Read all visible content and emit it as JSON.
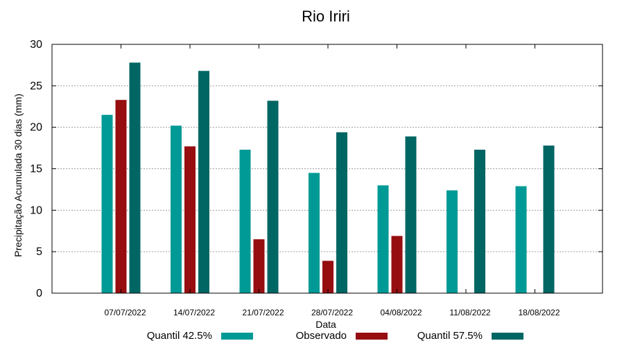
{
  "chart_data": {
    "type": "bar",
    "title": "Rio Iriri",
    "xlabel": "Data",
    "ylabel": "Precipitação Acumulada 30 dias (mm)",
    "ylim": [
      0,
      30
    ],
    "yticks": [
      0,
      5,
      10,
      15,
      20,
      25,
      30
    ],
    "grid": true,
    "legend_position": "bottom",
    "categories": [
      "07/07/2022",
      "14/07/2022",
      "21/07/2022",
      "28/07/2022",
      "04/08/2022",
      "11/08/2022",
      "18/08/2022"
    ],
    "series": [
      {
        "name": "Quantil 42.5%",
        "color": "#009a96",
        "values": [
          21.5,
          20.2,
          17.3,
          14.5,
          13.0,
          12.4,
          12.9
        ]
      },
      {
        "name": "Observado",
        "color": "#960e10",
        "values": [
          23.3,
          17.7,
          6.5,
          3.9,
          6.9,
          null,
          null
        ]
      },
      {
        "name": "Quantil 57.5%",
        "color": "#006663",
        "values": [
          27.8,
          26.8,
          23.2,
          19.4,
          18.9,
          17.3,
          17.8
        ]
      }
    ]
  }
}
